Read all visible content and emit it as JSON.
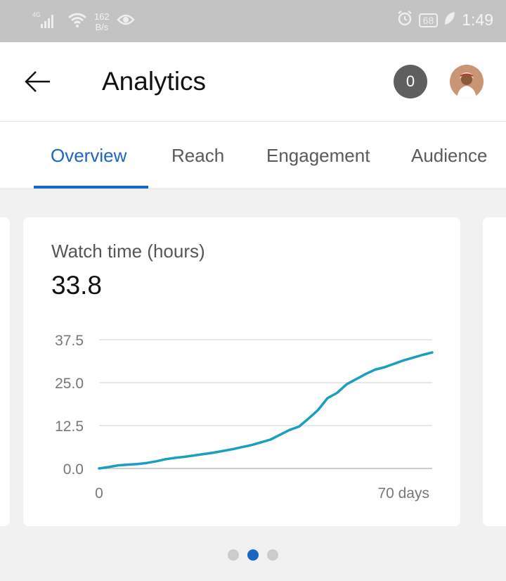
{
  "status_bar": {
    "network_type": "4G",
    "net_speed_value": "162",
    "net_speed_unit": "B/s",
    "battery_level": "68",
    "time": "1:49"
  },
  "app_bar": {
    "title": "Analytics",
    "notification_count": "0"
  },
  "tabs": [
    {
      "label": "Overview",
      "active": true
    },
    {
      "label": "Reach",
      "active": false
    },
    {
      "label": "Engagement",
      "active": false
    },
    {
      "label": "Audience",
      "active": false
    }
  ],
  "card": {
    "metric_label": "Watch time (hours)",
    "metric_value": "33.8"
  },
  "chart_data": {
    "type": "line",
    "title": "",
    "xlabel": "",
    "ylabel": "",
    "x_tick_labels": [
      "0",
      "70 days"
    ],
    "y_tick_labels": [
      "0.0",
      "12.5",
      "25.0",
      "37.5"
    ],
    "ylim": [
      0,
      37.5
    ],
    "xlim": [
      0,
      70
    ],
    "grid": true,
    "color": "#1a9fbf",
    "series": [
      {
        "x": [
          0,
          2,
          4,
          6,
          8,
          10,
          12,
          14,
          16,
          18,
          20,
          22,
          24,
          26,
          28,
          30,
          32,
          34,
          36,
          38,
          40,
          42,
          44,
          46,
          48,
          50,
          52,
          54,
          56,
          58,
          60,
          62,
          64,
          66,
          68,
          70
        ],
        "y": [
          0,
          0.4,
          0.9,
          1.1,
          1.3,
          1.6,
          2.1,
          2.7,
          3.1,
          3.4,
          3.8,
          4.2,
          4.6,
          5.1,
          5.6,
          6.2,
          6.8,
          7.6,
          8.4,
          9.8,
          11.2,
          12.2,
          14.5,
          17.0,
          20.5,
          22.0,
          24.5,
          26.0,
          27.5,
          28.8,
          29.5,
          30.5,
          31.5,
          32.3,
          33.1,
          33.8
        ]
      }
    ]
  },
  "pager": {
    "count": 3,
    "active_index": 1
  },
  "colors": {
    "accent": "#1a66c4",
    "chart_line": "#1a9fbf",
    "status_bar_bg": "#c3c3c3"
  }
}
